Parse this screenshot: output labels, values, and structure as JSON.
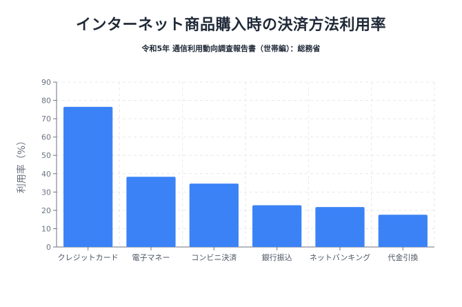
{
  "chart_data": {
    "type": "bar",
    "title": "インターネット商品購入時の決済方法利用率",
    "subtitle": "令和5年 通信利用動向調査報告書（世帯編）：総務省",
    "xlabel": "",
    "ylabel": "利用率（%）",
    "categories": [
      "クレジットカード",
      "電子マネー",
      "コンビニ決済",
      "銀行振込",
      "ネットバンキング",
      "代金引換"
    ],
    "values": [
      76.5,
      38.3,
      34.6,
      22.8,
      21.8,
      17.6
    ],
    "ylim": [
      0,
      90
    ],
    "yticks": [
      0,
      10,
      20,
      30,
      40,
      50,
      60,
      70,
      80,
      90
    ],
    "grid": true,
    "legend": "none",
    "bar_color": "#3b82f6"
  }
}
